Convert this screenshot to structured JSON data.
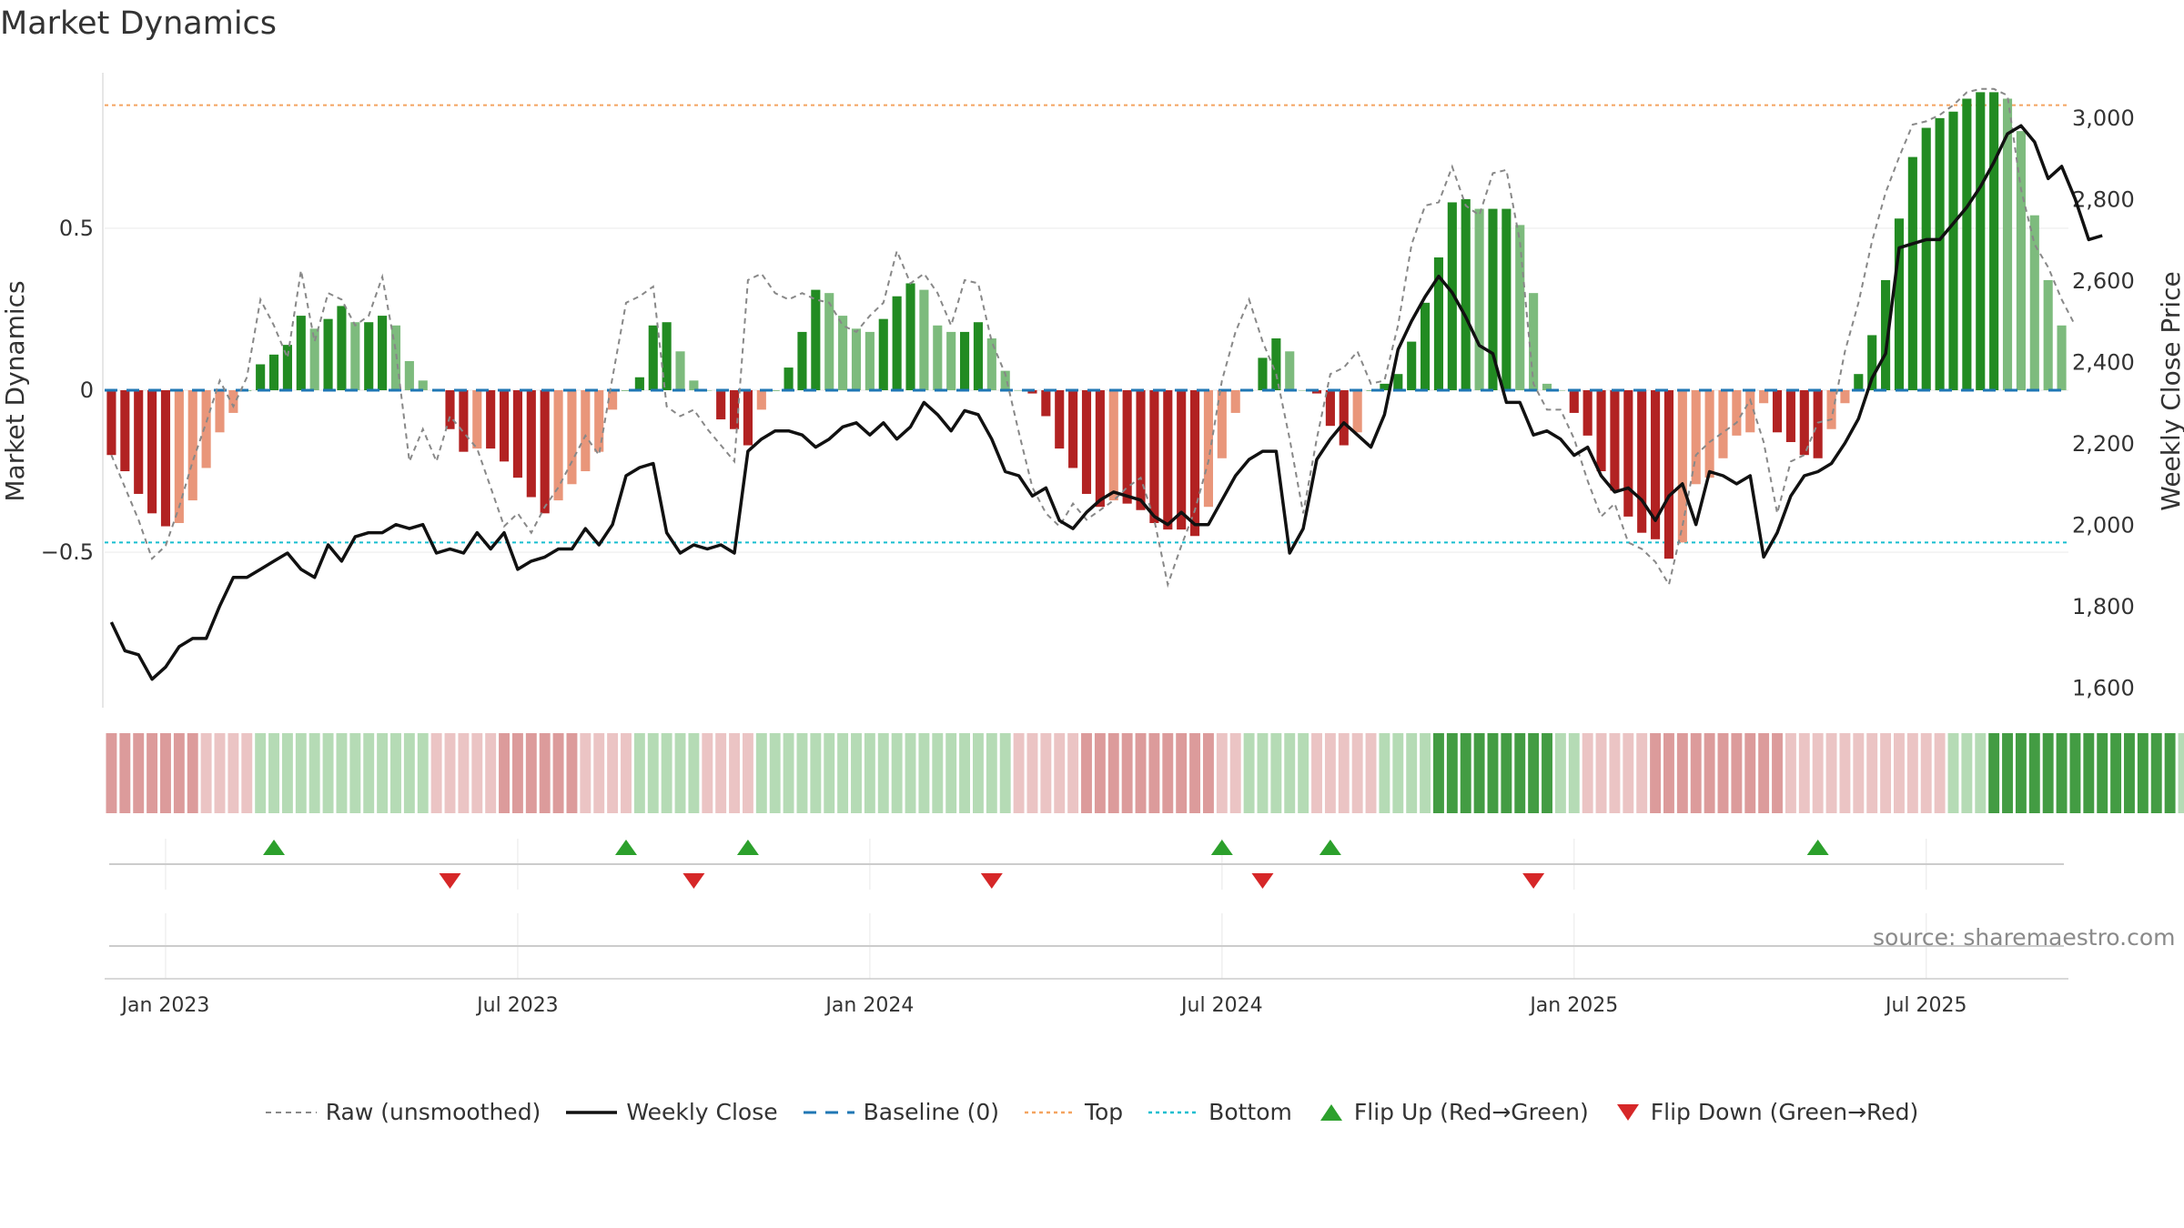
{
  "title": "Market Dynamics",
  "source": "source: sharemaestro.com",
  "colors": {
    "strong_green": "#228b22",
    "light_green": "#7dbb7d",
    "strong_red": "#b22222",
    "light_red": "#e9967a",
    "close": "#111111",
    "raw": "#888888",
    "baseline": "#1f77b4",
    "top": "#f4a460",
    "bottom": "#17becf",
    "flip_up": "#2ca02c",
    "flip_down": "#d62728"
  },
  "chart_data": {
    "type": "bar+line",
    "ylabel_left": "Market Dynamics",
    "ylabel_right": "Weekly Close Price",
    "left_ylim": [
      -0.98,
      0.98
    ],
    "right_ylim": [
      1550,
      3110
    ],
    "left_ticks": [
      -0.5,
      0,
      0.5
    ],
    "left_tick_labels": [
      "−0.5",
      "0",
      "0.5"
    ],
    "right_ticks": [
      1600,
      1800,
      2000,
      2200,
      2400,
      2600,
      2800,
      3000
    ],
    "right_tick_labels": [
      "1,600",
      "1,800",
      "2,000",
      "2,200",
      "2,400",
      "2,600",
      "2,800",
      "3,000"
    ],
    "x_tick_weeks": [
      4,
      30,
      56,
      82,
      108,
      134
    ],
    "x_tick_labels": [
      "Jan 2023",
      "Jul 2023",
      "Jan 2024",
      "Jul 2024",
      "Jan 2025",
      "Jul 2025"
    ],
    "top_level": 0.88,
    "bottom_level": -0.47,
    "baseline": 0,
    "market_dynamics": [
      -0.2,
      -0.25,
      -0.32,
      -0.38,
      -0.42,
      -0.41,
      -0.34,
      -0.24,
      -0.13,
      -0.07,
      0,
      0.08,
      0.11,
      0.14,
      0.23,
      0.19,
      0.22,
      0.26,
      0.21,
      0.21,
      0.23,
      0.2,
      0.09,
      0.03,
      0,
      -0.12,
      -0.19,
      -0.18,
      -0.18,
      -0.22,
      -0.27,
      -0.33,
      -0.38,
      -0.34,
      -0.29,
      -0.25,
      -0.19,
      -0.06,
      0,
      0.04,
      0.2,
      0.21,
      0.12,
      0.03,
      0,
      -0.09,
      -0.12,
      -0.17,
      -0.06,
      0,
      0.07,
      0.18,
      0.31,
      0.3,
      0.23,
      0.19,
      0.18,
      0.22,
      0.29,
      0.33,
      0.31,
      0.2,
      0.18,
      0.18,
      0.21,
      0.16,
      0.06,
      0,
      -0.01,
      -0.08,
      -0.18,
      -0.24,
      -0.32,
      -0.36,
      -0.34,
      -0.35,
      -0.37,
      -0.41,
      -0.43,
      -0.43,
      -0.45,
      -0.36,
      -0.21,
      -0.07,
      0,
      0.1,
      0.16,
      0.12,
      0,
      -0.01,
      -0.11,
      -0.17,
      -0.13,
      0,
      0.02,
      0.05,
      0.15,
      0.27,
      0.41,
      0.58,
      0.59,
      0.56,
      0.56,
      0.56,
      0.51,
      0.3,
      0.02,
      0,
      -0.07,
      -0.14,
      -0.25,
      -0.31,
      -0.39,
      -0.44,
      -0.46,
      -0.52,
      -0.47,
      -0.29,
      -0.27,
      -0.21,
      -0.14,
      -0.13,
      -0.04,
      -0.13,
      -0.16,
      -0.2,
      -0.21,
      -0.12,
      -0.04,
      0.05,
      0.17,
      0.34,
      0.53,
      0.72,
      0.81,
      0.84,
      0.86,
      0.9,
      0.92,
      0.92,
      0.9,
      0.8,
      0.54,
      0.34,
      0.2
    ],
    "weekly_close": [
      1760,
      1690,
      1680,
      1620,
      1650,
      1700,
      1720,
      1720,
      1800,
      1870,
      1870,
      1890,
      1910,
      1930,
      1890,
      1870,
      1950,
      1910,
      1970,
      1980,
      1980,
      2000,
      1990,
      2000,
      1930,
      1940,
      1930,
      1980,
      1940,
      1980,
      1890,
      1910,
      1920,
      1940,
      1940,
      1990,
      1950,
      2000,
      2120,
      2140,
      2150,
      1980,
      1930,
      1950,
      1940,
      1950,
      1930,
      2180,
      2210,
      2230,
      2230,
      2220,
      2190,
      2210,
      2240,
      2250,
      2220,
      2250,
      2210,
      2240,
      2300,
      2270,
      2230,
      2280,
      2270,
      2210,
      2130,
      2120,
      2070,
      2090,
      2010,
      1990,
      2030,
      2060,
      2080,
      2070,
      2060,
      2020,
      2000,
      2030,
      2000,
      2000,
      2060,
      2120,
      2160,
      2180,
      2180,
      1930,
      1990,
      2160,
      2210,
      2250,
      2220,
      2190,
      2270,
      2430,
      2500,
      2560,
      2610,
      2570,
      2510,
      2440,
      2420,
      2300,
      2300,
      2220,
      2230,
      2210,
      2170,
      2190,
      2120,
      2080,
      2090,
      2060,
      2010,
      2070,
      2100,
      2000,
      2130,
      2120,
      2100,
      2120,
      1920,
      1980,
      2070,
      2120,
      2130,
      2150,
      2200,
      2260,
      2360,
      2420,
      2680,
      2690,
      2700,
      2700,
      2740,
      2780,
      2830,
      2890,
      2960,
      2980,
      2940,
      2850,
      2880,
      2800,
      2700,
      2710
    ],
    "raw": [
      -0.2,
      -0.3,
      -0.4,
      -0.52,
      -0.48,
      -0.36,
      -0.22,
      -0.1,
      0.03,
      -0.05,
      0.04,
      0.28,
      0.2,
      0.1,
      0.37,
      0.15,
      0.3,
      0.28,
      0.2,
      0.23,
      0.35,
      0.12,
      -0.22,
      -0.12,
      -0.22,
      -0.08,
      -0.13,
      -0.18,
      -0.3,
      -0.42,
      -0.38,
      -0.44,
      -0.36,
      -0.3,
      -0.22,
      -0.14,
      -0.2,
      0.04,
      0.27,
      0.29,
      0.32,
      -0.05,
      -0.08,
      -0.06,
      -0.12,
      -0.17,
      -0.22,
      0.34,
      0.36,
      0.3,
      0.28,
      0.3,
      0.28,
      0.27,
      0.2,
      0.18,
      0.23,
      0.27,
      0.43,
      0.33,
      0.36,
      0.3,
      0.2,
      0.34,
      0.33,
      0.15,
      0.05,
      -0.13,
      -0.3,
      -0.38,
      -0.42,
      -0.35,
      -0.4,
      -0.37,
      -0.34,
      -0.3,
      -0.27,
      -0.4,
      -0.6,
      -0.48,
      -0.37,
      -0.22,
      0.03,
      0.18,
      0.28,
      0.15,
      0.05,
      -0.15,
      -0.38,
      -0.15,
      0.05,
      0.07,
      0.12,
      0.02,
      0.03,
      0.2,
      0.45,
      0.57,
      0.58,
      0.69,
      0.57,
      0.54,
      0.67,
      0.68,
      0.46,
      0.02,
      -0.06,
      -0.06,
      -0.15,
      -0.28,
      -0.39,
      -0.35,
      -0.47,
      -0.49,
      -0.53,
      -0.6,
      -0.42,
      -0.2,
      -0.16,
      -0.13,
      -0.1,
      -0.03,
      -0.16,
      -0.38,
      -0.22,
      -0.2,
      -0.1,
      -0.09,
      0.12,
      0.27,
      0.46,
      0.61,
      0.72,
      0.82,
      0.83,
      0.85,
      0.88,
      0.92,
      0.93,
      0.93,
      0.91,
      0.62,
      0.45,
      0.38,
      0.28,
      0.2
    ],
    "regime_strip": [
      -2,
      -2,
      -2,
      -2,
      -2,
      -2,
      -2,
      -1,
      -1,
      -1,
      -1,
      1,
      1,
      1,
      1,
      1,
      1,
      1,
      1,
      1,
      1,
      1,
      1,
      1,
      -1,
      -1,
      -1,
      -1,
      -1,
      -2,
      -2,
      -2,
      -2,
      -2,
      -2,
      -1,
      -1,
      -1,
      -1,
      1,
      1,
      1,
      1,
      1,
      -1,
      -1,
      -1,
      -1,
      1,
      1,
      1,
      1,
      1,
      1,
      1,
      1,
      1,
      1,
      1,
      1,
      1,
      1,
      1,
      1,
      1,
      1,
      1,
      -1,
      -1,
      -1,
      -1,
      -1,
      -2,
      -2,
      -2,
      -2,
      -2,
      -2,
      -2,
      -2,
      -2,
      -2,
      -1,
      -1,
      1,
      1,
      1,
      1,
      1,
      -1,
      -1,
      -1,
      -1,
      -1,
      1,
      1,
      1,
      1,
      2,
      2,
      2,
      2,
      2,
      2,
      2,
      2,
      2,
      1,
      1,
      -1,
      -1,
      -1,
      -1,
      -1,
      -2,
      -2,
      -2,
      -2,
      -2,
      -2,
      -2,
      -2,
      -2,
      -2,
      -1,
      -1,
      -1,
      -1,
      -1,
      -1,
      -1,
      -1,
      -1,
      -1,
      -1,
      -1,
      1,
      1,
      1,
      2,
      2,
      2,
      2,
      2,
      2,
      2,
      2,
      2,
      2,
      2,
      2,
      2,
      2,
      1,
      1
    ],
    "flip_up_weeks": [
      12,
      38,
      47,
      82,
      90,
      126
    ],
    "flip_down_weeks": [
      25,
      43,
      65,
      85,
      105
    ]
  },
  "legend": [
    {
      "label": "Raw (unsmoothed)",
      "icon": "dashed-gray-line"
    },
    {
      "label": "Weekly Close",
      "icon": "solid-black-line"
    },
    {
      "label": "Baseline (0)",
      "icon": "dashed-blue-line"
    },
    {
      "label": "Top",
      "icon": "dotted-orange-line"
    },
    {
      "label": "Bottom",
      "icon": "dotted-cyan-line"
    },
    {
      "label": "Flip Up (Red→Green)",
      "icon": "green-up-triangle"
    },
    {
      "label": "Flip Down (Green→Red)",
      "icon": "red-down-triangle"
    }
  ]
}
